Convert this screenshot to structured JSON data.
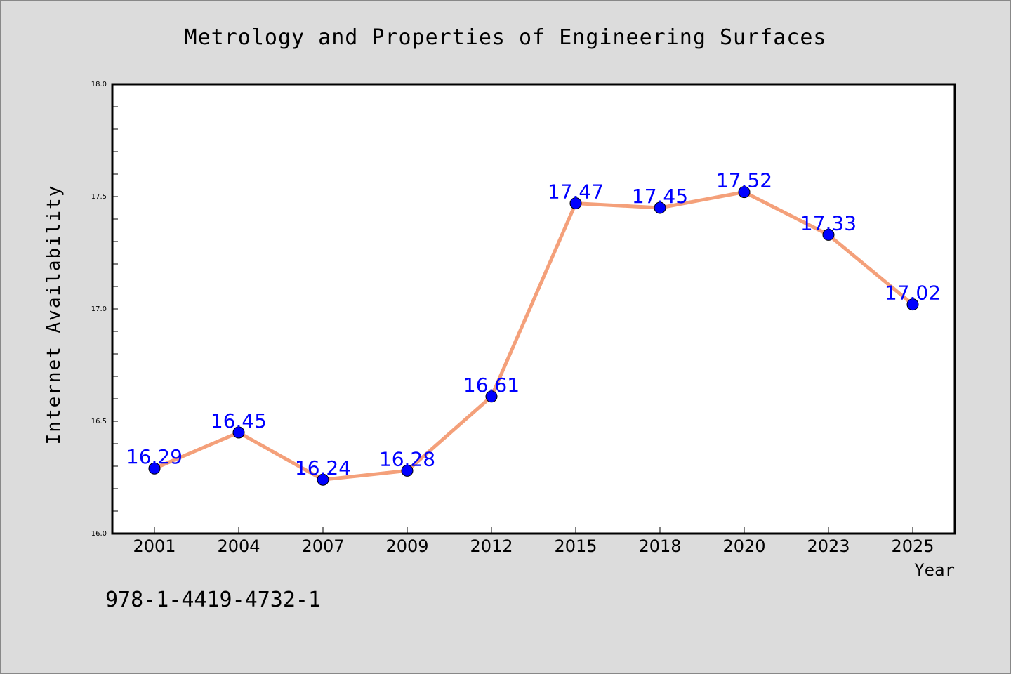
{
  "chart_data": {
    "type": "line",
    "title": "Metrology and Properties of Engineering Surfaces",
    "xlabel": "Year",
    "ylabel": "Internet Availability",
    "categories": [
      "2001",
      "2004",
      "2007",
      "2009",
      "2012",
      "2015",
      "2018",
      "2020",
      "2023",
      "2025"
    ],
    "series": [
      {
        "values": [
          16.29,
          16.45,
          16.24,
          16.28,
          16.61,
          17.47,
          17.45,
          17.52,
          17.33,
          17.02
        ],
        "data_labels": [
          "16.29",
          "16.45",
          "16.24",
          "16.28",
          "16.61",
          "17.47",
          "17.45",
          "17.52",
          "17.33",
          "17.02"
        ],
        "line_color": "#f4a07a",
        "marker_color": "#0000ff",
        "label_color": "#0000ff"
      }
    ],
    "ylim": [
      16.0,
      18.0
    ],
    "yticks": [
      "16.0",
      "16.5",
      "17.0",
      "17.5",
      "18.0"
    ],
    "grid": false,
    "legend": "none"
  },
  "footer": {
    "isbn": "978-1-4419-4732-1"
  },
  "colors": {
    "background": "#dcdcdc",
    "plot_area": "#ffffff",
    "axes": "#000000"
  }
}
